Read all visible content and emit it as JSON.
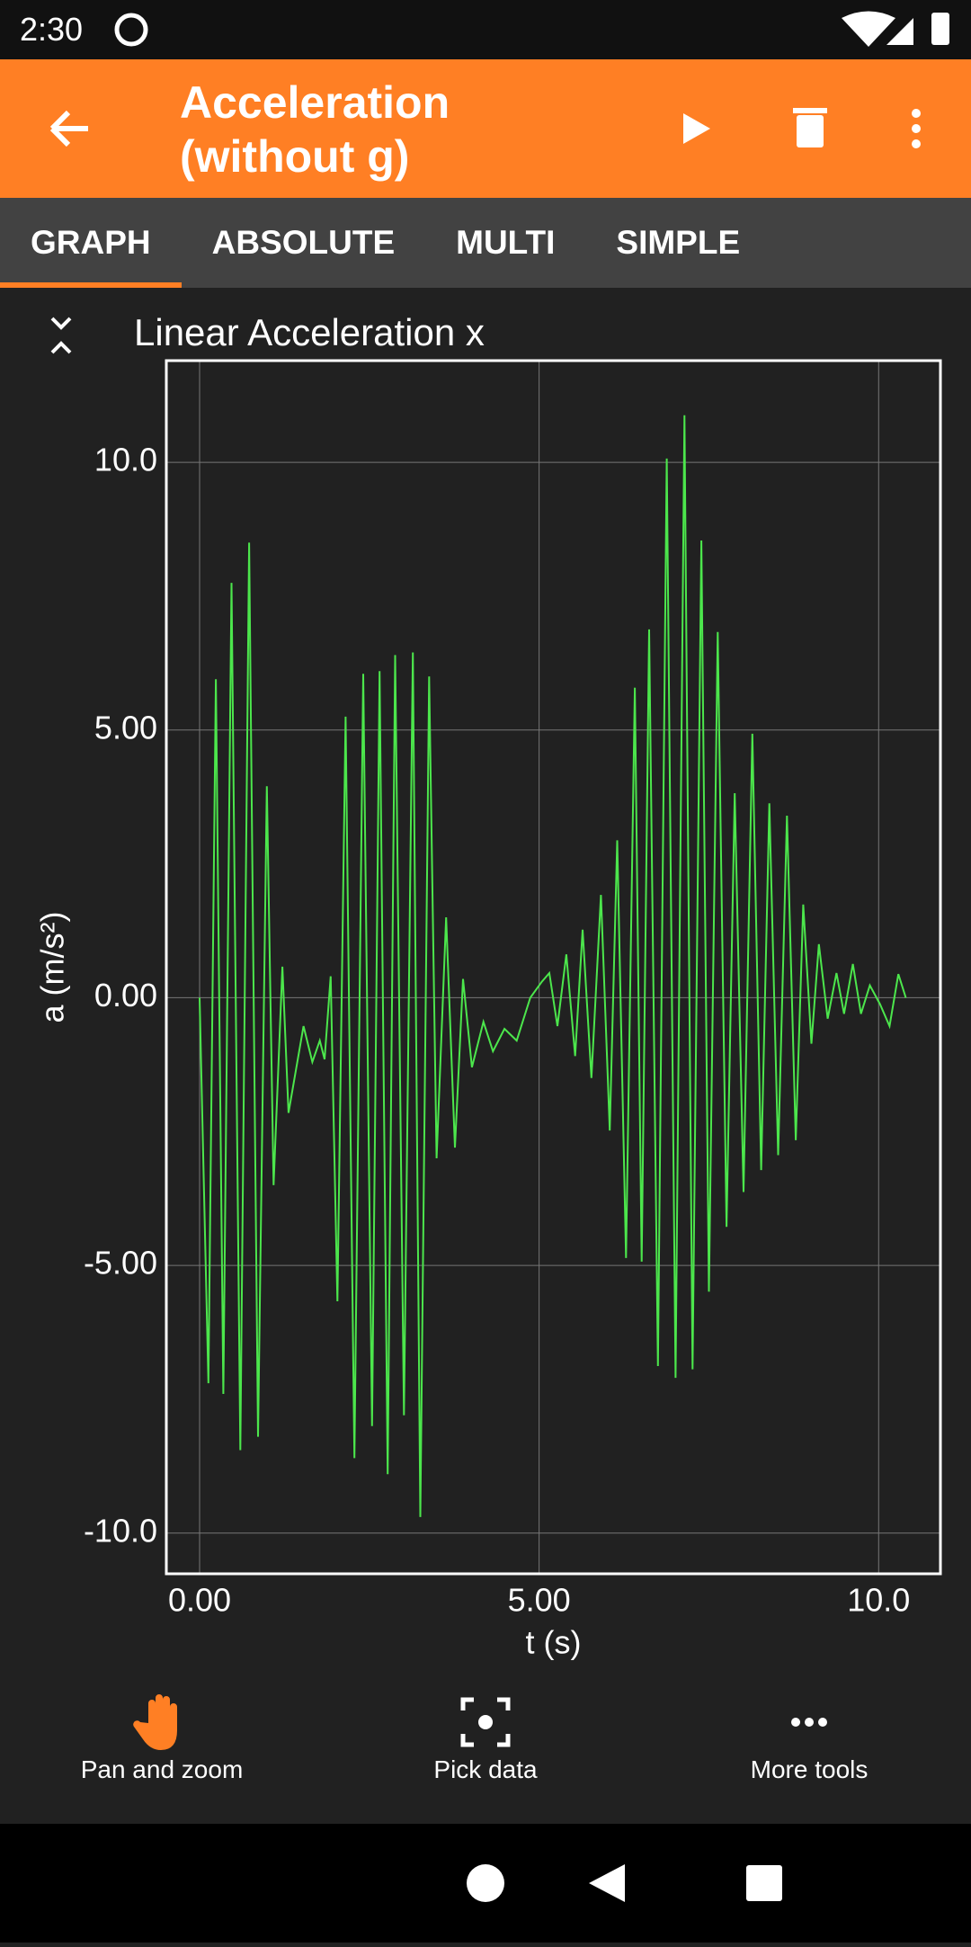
{
  "status_bar": {
    "time": "2:30"
  },
  "app_bar": {
    "title": "Acceleration (without g)"
  },
  "tabs": [
    "GRAPH",
    "ABSOLUTE",
    "MULTI",
    "SIMPLE"
  ],
  "chart_data": {
    "type": "line",
    "title": "Linear Acceleration x",
    "x_label": "t (s)",
    "y_label": "a (m/s²)",
    "x": [
      0,
      0.13,
      0.24,
      0.35,
      0.47,
      0.6,
      0.73,
      0.86,
      0.99,
      1.09,
      1.22,
      1.31,
      1.53,
      1.66,
      1.77,
      1.84,
      1.93,
      2.03,
      2.15,
      2.28,
      2.41,
      2.54,
      2.65,
      2.77,
      2.88,
      3.01,
      3.14,
      3.25,
      3.38,
      3.49,
      3.63,
      3.76,
      3.88,
      4.01,
      4.18,
      4.32,
      4.49,
      4.67,
      4.87,
      5.04,
      5.15,
      5.27,
      5.4,
      5.53,
      5.64,
      5.77,
      5.91,
      6.04,
      6.15,
      6.28,
      6.41,
      6.51,
      6.62,
      6.75,
      6.88,
      7.01,
      7.14,
      7.26,
      7.39,
      7.5,
      7.63,
      7.76,
      7.88,
      8.01,
      8.14,
      8.27,
      8.39,
      8.52,
      8.65,
      8.78,
      8.89,
      9.01,
      9.12,
      9.25,
      9.38,
      9.49,
      9.62,
      9.74,
      9.87,
      10.02,
      10.16,
      10.29,
      10.4
    ],
    "values": [
      0,
      -7.2,
      5.95,
      -7.4,
      7.75,
      -8.45,
      8.5,
      -8.2,
      3.95,
      -3.5,
      0.58,
      -2.15,
      -0.53,
      -1.2,
      -0.8,
      -1.15,
      0.4,
      -5.67,
      5.25,
      -8.6,
      6.05,
      -8,
      6.1,
      -8.9,
      6.4,
      -7.8,
      6.45,
      -9.7,
      6,
      -3,
      1.5,
      -2.8,
      0.35,
      -1.3,
      -0.45,
      -1,
      -0.58,
      -0.8,
      0,
      0.3,
      0.46,
      -0.53,
      0.81,
      -1.09,
      1.27,
      -1.5,
      1.92,
      -2.48,
      2.94,
      -4.86,
      5.79,
      -4.93,
      6.88,
      -6.88,
      10.07,
      -7.1,
      10.88,
      -6.94,
      8.54,
      -5.49,
      6.83,
      -4.28,
      3.82,
      -3.63,
      4.93,
      -3.22,
      3.63,
      -2.94,
      3.4,
      -2.66,
      1.74,
      -0.86,
      1,
      -0.39,
      0.46,
      -0.3,
      0.63,
      -0.3,
      0.23,
      -0.12,
      -0.53,
      0.44,
      0
    ],
    "color": "#4ce64c",
    "xlim": [
      -0.49,
      10.91
    ],
    "ylim": [
      -10.76,
      11.9
    ],
    "xticks": [
      {
        "value": 0,
        "label": "0.00"
      },
      {
        "value": 5,
        "label": "5.00"
      },
      {
        "value": 10,
        "label": "10.0"
      }
    ],
    "yticks": [
      {
        "value": -10,
        "label": "-10.0"
      },
      {
        "value": -5,
        "label": "-5.00"
      },
      {
        "value": 0,
        "label": "0.00"
      },
      {
        "value": 5,
        "label": "5.00"
      },
      {
        "value": 10,
        "label": "10.0"
      }
    ],
    "grid": true
  },
  "toolbar": [
    "Pan and zoom",
    "Pick data",
    "More tools"
  ]
}
